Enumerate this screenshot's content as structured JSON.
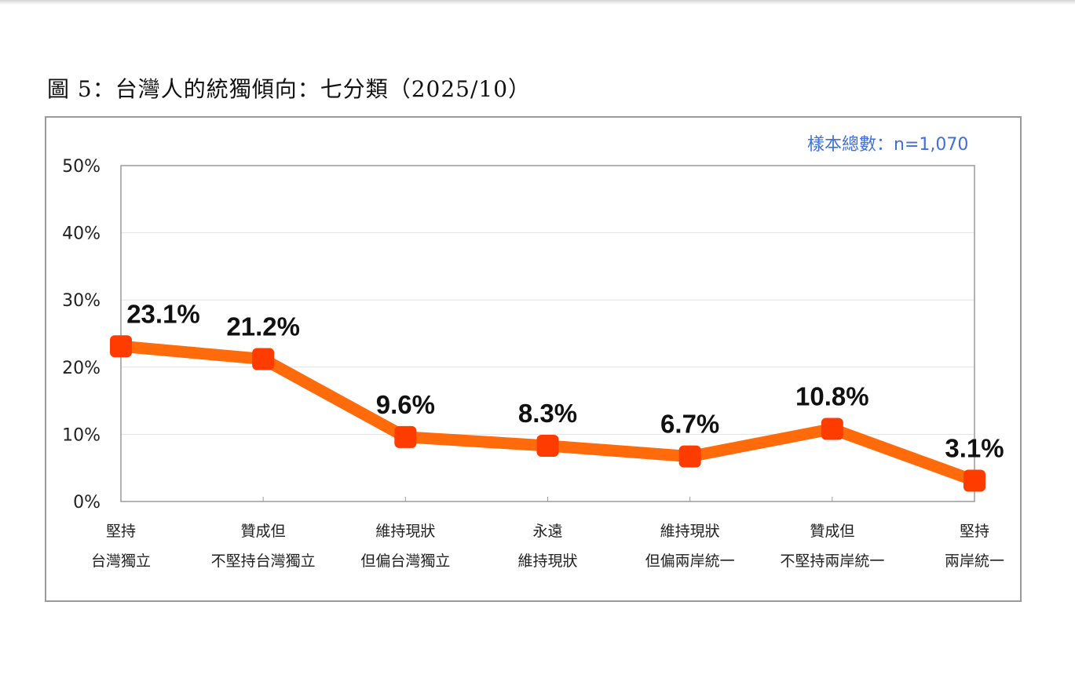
{
  "page": {
    "figure_title": "圖 5：台灣人的統獨傾向：七分類（2025/10）",
    "sample_size": "樣本總數：n=1,070"
  },
  "colors": {
    "line": "#ff6a0a",
    "marker": "#ff3c00",
    "sample_size_text": "#3f6fd8",
    "gridline": "#e2e2e2",
    "axis": "#9a9a9a"
  },
  "chart_data": {
    "type": "line",
    "title": "圖 5：台灣人的統獨傾向：七分類（2025/10）",
    "subtitle": "樣本總數：n=1,070",
    "xlabel": "",
    "ylabel": "",
    "ylim": [
      0,
      50
    ],
    "yticks": [
      "0%",
      "10%",
      "20%",
      "30%",
      "40%",
      "50%"
    ],
    "grid": true,
    "legend": null,
    "categories": [
      [
        "堅持",
        "台灣獨立"
      ],
      [
        "贊成但",
        "不堅持台灣獨立"
      ],
      [
        "維持現狀",
        "但偏台灣獨立"
      ],
      [
        "永遠",
        "維持現狀"
      ],
      [
        "維持現狀",
        "但偏兩岸統一"
      ],
      [
        "贊成但",
        "不堅持兩岸統一"
      ],
      [
        "堅持",
        "兩岸統一"
      ]
    ],
    "values": [
      23.1,
      21.2,
      9.6,
      8.3,
      6.7,
      10.8,
      3.1
    ],
    "data_labels": [
      "23.1%",
      "21.2%",
      "9.6%",
      "8.3%",
      "6.7%",
      "10.8%",
      "3.1%"
    ]
  }
}
